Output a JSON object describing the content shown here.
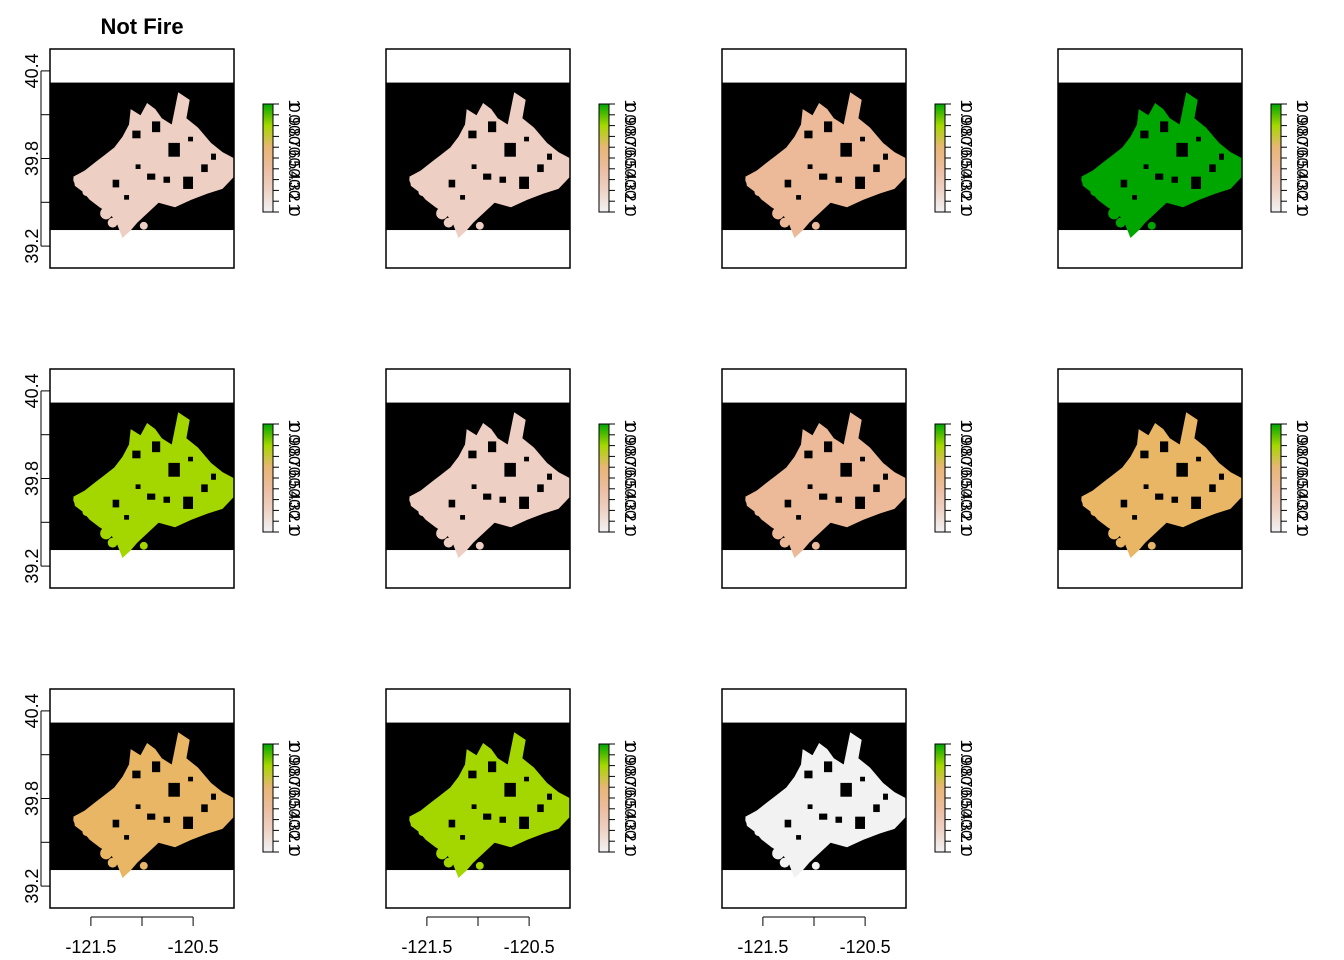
{
  "title": "Not Fire",
  "chart_data": {
    "type": "heatmap",
    "layout": {
      "rows": 3,
      "cols": 4,
      "panels": 11
    },
    "title": "Not Fire",
    "xlim": [
      -121.9,
      -120.1
    ],
    "ylim": [
      39.05,
      40.55
    ],
    "x_ticks": [
      -121.5,
      -121.0,
      -120.5
    ],
    "x_tick_labels": [
      "-121.5",
      "",
      "-120.5"
    ],
    "y_ticks": [
      39.2,
      39.5,
      39.8,
      40.1,
      40.4
    ],
    "y_tick_labels": [
      "39.2",
      "",
      "39.8",
      "",
      "40.4"
    ],
    "raster_extent": {
      "lat": [
        39.31,
        40.32
      ]
    },
    "background_value_color": "#000000",
    "legend_range": [
      0,
      1
    ],
    "legend_ticks": [
      0,
      0.1,
      0.2,
      0.3,
      0.4,
      0.5,
      0.6,
      0.7,
      0.8,
      0.9,
      1
    ],
    "legend_tick_labels": [
      "0",
      "0.1",
      "0.2",
      "0.3",
      "0.4",
      "0.5",
      "0.6",
      "0.7",
      "0.8",
      "0.9",
      "1"
    ],
    "legend_colors": [
      "#f2f2f2",
      "#eed2c6",
      "#ecbda0",
      "#e8b674",
      "#a7d700",
      "#00a600"
    ],
    "panels": [
      {
        "value": 0.18,
        "fill": "#eecfc3"
      },
      {
        "value": 0.18,
        "fill": "#eecfc3"
      },
      {
        "value": 0.32,
        "fill": "#ecba98"
      },
      {
        "value": 0.98,
        "fill": "#00a600"
      },
      {
        "value": 0.85,
        "fill": "#a4d600"
      },
      {
        "value": 0.18,
        "fill": "#eecfc3"
      },
      {
        "value": 0.32,
        "fill": "#ecba98"
      },
      {
        "value": 0.45,
        "fill": "#e8b664"
      },
      {
        "value": 0.45,
        "fill": "#e8b664"
      },
      {
        "value": 0.85,
        "fill": "#a4d600"
      },
      {
        "value": 0.02,
        "fill": "#f2f2f2"
      }
    ]
  }
}
